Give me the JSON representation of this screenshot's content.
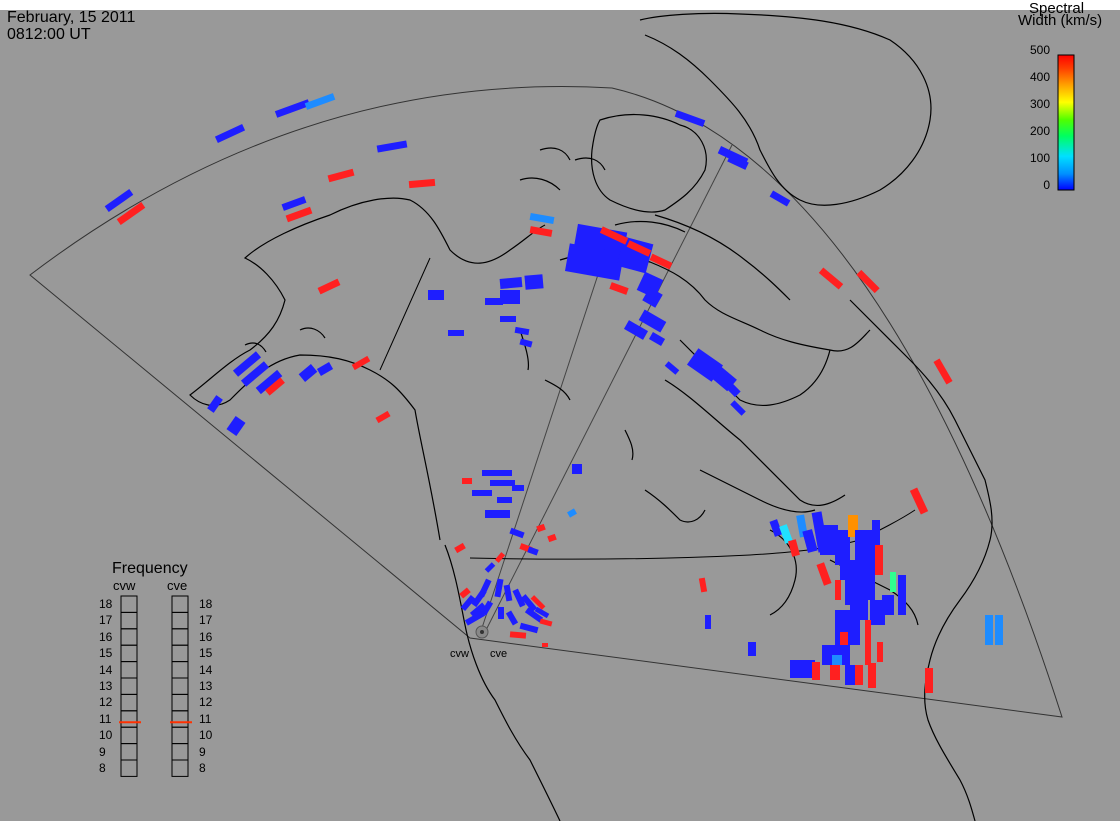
{
  "header": {
    "date": "February, 15 2011",
    "time": "0812:00 UT"
  },
  "colorbar": {
    "title_line1": "Spectral",
    "title_line2": "Width (km/s)",
    "ticks": [
      "500",
      "400",
      "300",
      "200",
      "100",
      "0"
    ],
    "min": 0,
    "max": 500,
    "colors": [
      "#0000ff",
      "#0090ff",
      "#00e0ff",
      "#00ff60",
      "#50ff00",
      "#ffff00",
      "#ffa000",
      "#ff4000",
      "#ff0000"
    ]
  },
  "frequency_panel": {
    "title": "Frequency",
    "radars": [
      {
        "label": "cvw",
        "frequency_mhz": 10.8
      },
      {
        "label": "cve",
        "frequency_mhz": 10.8
      }
    ],
    "scale": [
      "18",
      "17",
      "16",
      "15",
      "14",
      "13",
      "12",
      "11",
      "10",
      "9",
      "8"
    ],
    "range": [
      8,
      18
    ]
  },
  "radar_sites": [
    {
      "label": "cvw"
    },
    {
      "label": "cve"
    }
  ]
}
